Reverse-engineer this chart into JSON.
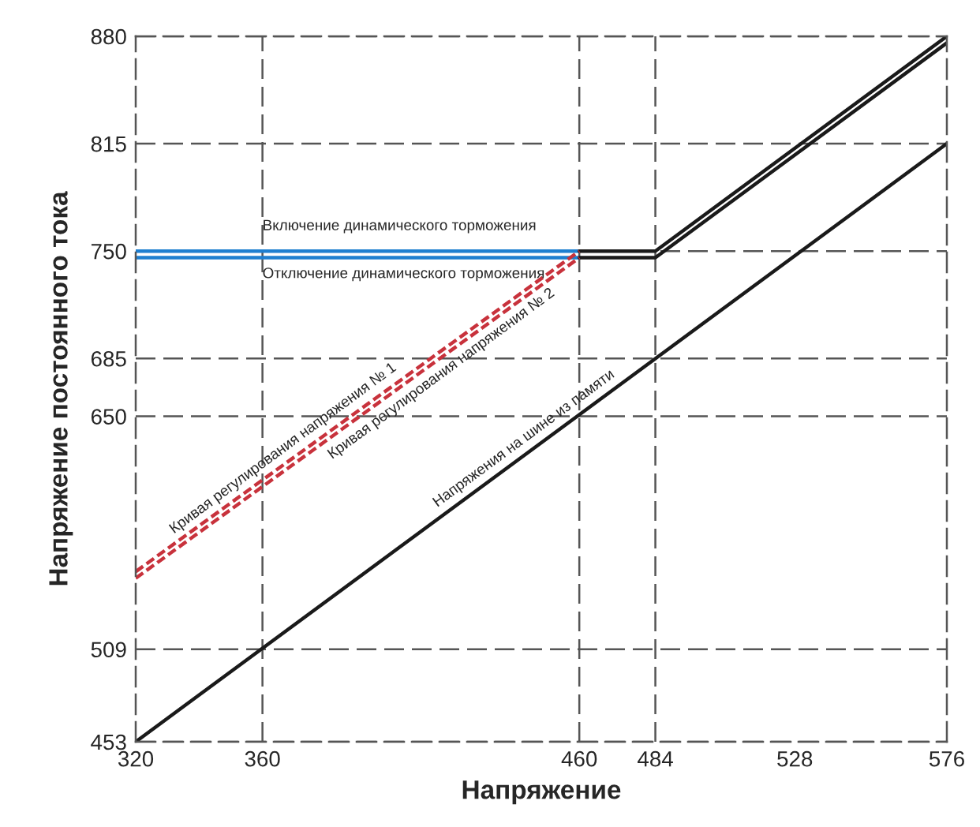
{
  "chart_data": {
    "type": "line",
    "xlabel": "Напряжение",
    "ylabel": "Напряжение постоянного тока",
    "xlim": [
      320,
      576
    ],
    "xticks": [
      320,
      360,
      460,
      484,
      528,
      576
    ],
    "ylim": [
      453,
      880
    ],
    "yticks": [
      453,
      509,
      650,
      685,
      750,
      815,
      880
    ],
    "grid": "y",
    "legend": false,
    "marker": "none",
    "ref_lines": [
      {
        "axis": "x",
        "value": 360,
        "label": null,
        "color": "#555555",
        "line_style": "dashed"
      },
      {
        "axis": "x",
        "value": 460,
        "label": null,
        "color": "#555555",
        "line_style": "dashed"
      },
      {
        "axis": "x",
        "value": 484,
        "label": null,
        "color": "#555555",
        "line_style": "dashed"
      }
    ],
    "series": [
      {
        "color": "#1e7fd0",
        "x": [
          320,
          460
        ],
        "values": [
          750,
          750
        ]
      },
      {
        "color": "#1e7fd0",
        "x": [
          320,
          460
        ],
        "values": [
          746,
          746
        ]
      },
      {
        "color": "#1a1a1a",
        "x": [
          460,
          484,
          576
        ],
        "values": [
          750,
          750,
          880
        ]
      },
      {
        "color": "#1a1a1a",
        "x": [
          460,
          484,
          576
        ],
        "values": [
          746,
          746,
          876
        ]
      },
      {
        "color": "#c8323c",
        "x": [
          320,
          460
        ],
        "values": [
          556,
          750
        ],
        "line_style": "dashed"
      },
      {
        "color": "#c8323c",
        "x": [
          320,
          460
        ],
        "values": [
          552,
          746
        ],
        "line_style": "dashed"
      },
      {
        "color": "#1a1a1a",
        "x": [
          320,
          576
        ],
        "values": [
          453,
          815
        ]
      }
    ],
    "annotations": [
      {
        "text": "Включение динамического торможения",
        "x": 360,
        "y": 765
      },
      {
        "text": "Отключение динамического торможения",
        "x": 360,
        "y": 736
      },
      {
        "text": "Кривая регулирования напряжения № 1",
        "x": 369,
        "y": 624
      },
      {
        "text": "Кривая регулирования напряжения № 2",
        "x": 414,
        "y": 682
      },
      {
        "text": "Напряжения на шине из памяти",
        "x": 445,
        "y": 630
      }
    ]
  }
}
